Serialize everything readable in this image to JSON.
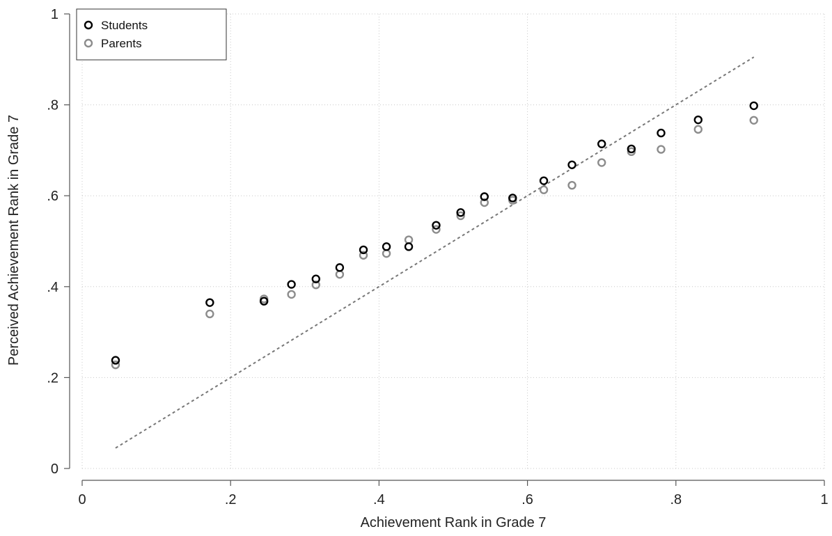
{
  "chart_data": {
    "type": "scatter",
    "xlabel": "Achievement Rank in Grade 7",
    "ylabel": "Perceived Achievement Rank in Grade 7",
    "xlim": [
      0,
      1
    ],
    "ylim": [
      0,
      1
    ],
    "x_ticks": [
      "0",
      ".2",
      ".4",
      ".6",
      ".8",
      "1"
    ],
    "y_ticks": [
      "0",
      ".2",
      ".4",
      ".6",
      ".8",
      "1"
    ],
    "grid": true,
    "legend_position": "top-left",
    "series": [
      {
        "name": "Students",
        "color": "#000000",
        "points": [
          [
            0.045,
            0.238
          ],
          [
            0.172,
            0.365
          ],
          [
            0.245,
            0.368
          ],
          [
            0.282,
            0.405
          ],
          [
            0.315,
            0.417
          ],
          [
            0.347,
            0.442
          ],
          [
            0.379,
            0.481
          ],
          [
            0.41,
            0.488
          ],
          [
            0.44,
            0.488
          ],
          [
            0.477,
            0.535
          ],
          [
            0.51,
            0.563
          ],
          [
            0.542,
            0.598
          ],
          [
            0.58,
            0.595
          ],
          [
            0.622,
            0.633
          ],
          [
            0.66,
            0.668
          ],
          [
            0.7,
            0.714
          ],
          [
            0.74,
            0.703
          ],
          [
            0.78,
            0.738
          ],
          [
            0.83,
            0.767
          ],
          [
            0.905,
            0.798
          ]
        ]
      },
      {
        "name": "Parents",
        "color": "#8c8c8c",
        "points": [
          [
            0.045,
            0.228
          ],
          [
            0.172,
            0.34
          ],
          [
            0.245,
            0.373
          ],
          [
            0.282,
            0.383
          ],
          [
            0.315,
            0.404
          ],
          [
            0.347,
            0.427
          ],
          [
            0.379,
            0.469
          ],
          [
            0.41,
            0.473
          ],
          [
            0.44,
            0.503
          ],
          [
            0.477,
            0.526
          ],
          [
            0.51,
            0.556
          ],
          [
            0.542,
            0.585
          ],
          [
            0.58,
            0.59
          ],
          [
            0.622,
            0.613
          ],
          [
            0.66,
            0.623
          ],
          [
            0.7,
            0.673
          ],
          [
            0.74,
            0.697
          ],
          [
            0.78,
            0.702
          ],
          [
            0.83,
            0.746
          ],
          [
            0.905,
            0.766
          ]
        ]
      }
    ],
    "reference_line": {
      "style": "dotted",
      "color": "#777777",
      "from": [
        0.045,
        0.045
      ],
      "to": [
        0.905,
        0.905
      ]
    }
  }
}
